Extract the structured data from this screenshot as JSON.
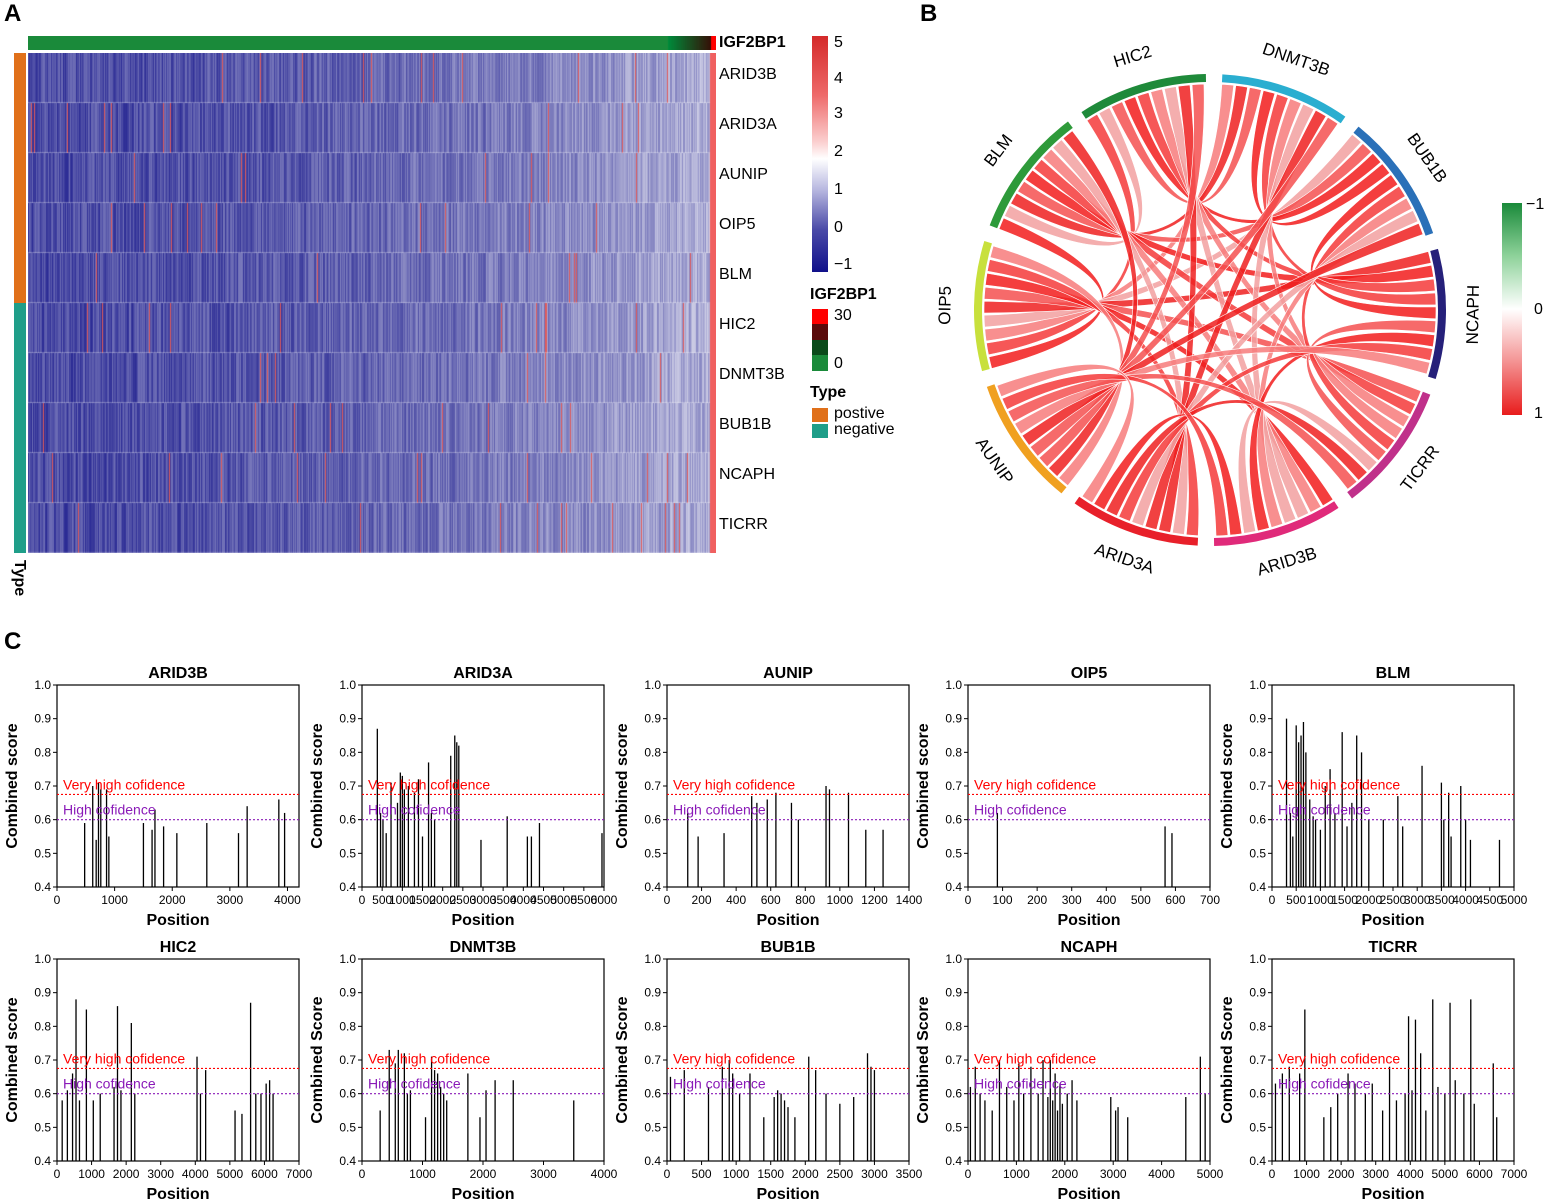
{
  "panels": {
    "a": "A",
    "b": "B",
    "c": "C"
  },
  "heatmap": {
    "top_annotation": "IGF2BP1",
    "genes": [
      "ARID3B",
      "ARID3A",
      "AUNIP",
      "OIP5",
      "BLM",
      "HIC2",
      "DNMT3B",
      "BUB1B",
      "NCAPH",
      "TICRR"
    ],
    "gene_types": [
      "postive",
      "postive",
      "postive",
      "postive",
      "postive",
      "negative",
      "negative",
      "negative",
      "negative",
      "negative"
    ],
    "type_axis_label": "Type",
    "scale_ticks": [
      "5",
      "4",
      "3",
      "2",
      "1",
      "0",
      "−1"
    ],
    "igf_legend_title": "IGF2BP1",
    "igf_legend_ticks": [
      "30",
      "0"
    ],
    "type_legend_title": "Type",
    "type_legend_items": [
      "postive",
      "negative"
    ],
    "colors": {
      "low": "#1a1a8c",
      "mid": "#ffffff",
      "high": "#e03030",
      "green": "#1a8a3a",
      "orange": "#e0701a",
      "teal": "#1f9e89",
      "black": "#000000",
      "red": "#ff0000"
    }
  },
  "chord": {
    "sectors": [
      {
        "name": "OIP5",
        "color": "#c8e03c"
      },
      {
        "name": "BLM",
        "color": "#2e9a3a"
      },
      {
        "name": "HIC2",
        "color": "#1f8a3a"
      },
      {
        "name": "DNMT3B",
        "color": "#2aaed0"
      },
      {
        "name": "BUB1B",
        "color": "#2a70b8"
      },
      {
        "name": "NCAPH",
        "color": "#26207a"
      },
      {
        "name": "TICRR",
        "color": "#c0308a"
      },
      {
        "name": "ARID3B",
        "color": "#e02a7a"
      },
      {
        "name": "ARID3A",
        "color": "#e8202a"
      },
      {
        "name": "AUNIP",
        "color": "#f0a020"
      }
    ],
    "legend_ticks": [
      "−1",
      "0",
      "1"
    ]
  },
  "chart_data": [
    {
      "type": "bar",
      "title": "ARID3B",
      "xlabel": "Position",
      "ylabel": "Combined score",
      "xlim": [
        0,
        4200
      ],
      "ylim": [
        0.4,
        1.0
      ],
      "xticks": [
        "0",
        "1000",
        "2000",
        "3000",
        "4000"
      ],
      "yticks": [
        "0.4",
        "0.5",
        "0.6",
        "0.7",
        "0.8",
        "0.9",
        "1.0"
      ],
      "thresholds": [
        {
          "label": "Very high cofidence",
          "value": 0.675,
          "color": "#ff0000"
        },
        {
          "label": "High cofidence",
          "value": 0.6,
          "color": "#8a1ab8"
        }
      ],
      "x": [
        480,
        620,
        680,
        720,
        760,
        860,
        900,
        1500,
        1650,
        1700,
        1850,
        2080,
        2600,
        3150,
        3300,
        3850,
        3950
      ],
      "values": [
        0.59,
        0.7,
        0.54,
        0.71,
        0.69,
        0.69,
        0.55,
        0.59,
        0.57,
        0.63,
        0.58,
        0.56,
        0.59,
        0.56,
        0.64,
        0.66,
        0.62
      ]
    },
    {
      "type": "bar",
      "title": "ARID3A",
      "xlabel": "Position",
      "ylabel": "Combined score",
      "xlim": [
        0,
        6000
      ],
      "ylim": [
        0.4,
        1.0
      ],
      "xticks": [
        "0",
        "500",
        "1000",
        "1500",
        "2000",
        "2500",
        "3000",
        "3500",
        "4000",
        "4500",
        "5000",
        "5500",
        "6000"
      ],
      "yticks": [
        "0.4",
        "0.5",
        "0.6",
        "0.7",
        "0.8",
        "0.9",
        "1.0"
      ],
      "thresholds": [
        {
          "label": "Very high cofidence",
          "value": 0.675,
          "color": "#ff0000"
        },
        {
          "label": "High cofidence",
          "value": 0.6,
          "color": "#8a1ab8"
        }
      ],
      "x": [
        380,
        460,
        520,
        600,
        720,
        880,
        950,
        1000,
        1050,
        1150,
        1300,
        1400,
        1500,
        1650,
        1720,
        1800,
        2200,
        2300,
        2350,
        2400,
        2950,
        3600,
        4100,
        4200,
        4400,
        5950
      ],
      "values": [
        0.87,
        0.62,
        0.6,
        0.56,
        0.71,
        0.65,
        0.74,
        0.73,
        0.69,
        0.7,
        0.68,
        0.72,
        0.55,
        0.77,
        0.62,
        0.6,
        0.79,
        0.85,
        0.83,
        0.82,
        0.54,
        0.61,
        0.55,
        0.55,
        0.59,
        0.56
      ]
    },
    {
      "type": "bar",
      "title": "AUNIP",
      "xlabel": "Position",
      "ylabel": "Combined score",
      "xlim": [
        0,
        1400
      ],
      "ylim": [
        0.4,
        1.0
      ],
      "xticks": [
        "0",
        "200",
        "400",
        "600",
        "800",
        "1000",
        "1200",
        "1400"
      ],
      "yticks": [
        "0.4",
        "0.5",
        "0.6",
        "0.7",
        "0.8",
        "0.9",
        "1.0"
      ],
      "thresholds": [
        {
          "label": "Very high cofidence",
          "value": 0.675,
          "color": "#ff0000"
        },
        {
          "label": "High cofidence",
          "value": 0.6,
          "color": "#8a1ab8"
        }
      ],
      "x": [
        120,
        180,
        330,
        490,
        520,
        580,
        630,
        720,
        760,
        920,
        940,
        1050,
        1150,
        1250
      ],
      "values": [
        0.62,
        0.55,
        0.56,
        0.67,
        0.65,
        0.66,
        0.68,
        0.65,
        0.6,
        0.7,
        0.69,
        0.68,
        0.57,
        0.57
      ]
    },
    {
      "type": "bar",
      "title": "OIP5",
      "xlabel": "Position",
      "ylabel": "Combined score",
      "xlim": [
        0,
        700
      ],
      "ylim": [
        0.4,
        1.0
      ],
      "xticks": [
        "0",
        "100",
        "200",
        "300",
        "400",
        "500",
        "600",
        "700"
      ],
      "yticks": [
        "0.4",
        "0.5",
        "0.6",
        "0.7",
        "0.8",
        "0.9",
        "1.0"
      ],
      "thresholds": [
        {
          "label": "Very high cofidence",
          "value": 0.675,
          "color": "#ff0000"
        },
        {
          "label": "High cofidence",
          "value": 0.6,
          "color": "#8a1ab8"
        }
      ],
      "x": [
        85,
        570,
        590
      ],
      "values": [
        0.62,
        0.58,
        0.56
      ]
    },
    {
      "type": "bar",
      "title": "BLM",
      "xlabel": "Position",
      "ylabel": "Combined score",
      "xlim": [
        0,
        5000
      ],
      "ylim": [
        0.4,
        1.0
      ],
      "xticks": [
        "0",
        "500",
        "1000",
        "1500",
        "2000",
        "2500",
        "3000",
        "3500",
        "4000",
        "4500",
        "5000"
      ],
      "yticks": [
        "0.4",
        "0.5",
        "0.6",
        "0.7",
        "0.8",
        "0.9",
        "1.0"
      ],
      "thresholds": [
        {
          "label": "Very high cofidence",
          "value": 0.675,
          "color": "#ff0000"
        },
        {
          "label": "High cofidence",
          "value": 0.6,
          "color": "#8a1ab8"
        }
      ],
      "x": [
        300,
        380,
        430,
        500,
        550,
        600,
        650,
        700,
        780,
        850,
        900,
        1000,
        1100,
        1200,
        1300,
        1450,
        1550,
        1650,
        1750,
        1850,
        2000,
        2300,
        2600,
        2700,
        3100,
        3500,
        3550,
        3650,
        3700,
        3900,
        4000,
        4100,
        4700
      ],
      "values": [
        0.9,
        0.62,
        0.55,
        0.88,
        0.83,
        0.85,
        0.89,
        0.8,
        0.66,
        0.61,
        0.6,
        0.57,
        0.7,
        0.75,
        0.62,
        0.86,
        0.58,
        0.65,
        0.85,
        0.8,
        0.6,
        0.6,
        0.67,
        0.58,
        0.76,
        0.71,
        0.6,
        0.68,
        0.55,
        0.7,
        0.6,
        0.54,
        0.54
      ]
    },
    {
      "type": "bar",
      "title": "HIC2",
      "xlabel": "Position",
      "ylabel": "Combined score",
      "xlim": [
        0,
        7000
      ],
      "ylim": [
        0.4,
        1.0
      ],
      "xticks": [
        "0",
        "1000",
        "2000",
        "3000",
        "4000",
        "5000",
        "6000",
        "7000"
      ],
      "yticks": [
        "0.4",
        "0.5",
        "0.6",
        "0.7",
        "0.8",
        "0.9",
        "1.0"
      ],
      "thresholds": [
        {
          "label": "Very high cofidence",
          "value": 0.675,
          "color": "#ff0000"
        },
        {
          "label": "High cofidence",
          "value": 0.6,
          "color": "#8a1ab8"
        }
      ],
      "x": [
        150,
        300,
        450,
        550,
        650,
        850,
        1050,
        1250,
        1650,
        1750,
        1850,
        2150,
        2250,
        4050,
        4150,
        4300,
        5150,
        5350,
        5600,
        5750,
        5900,
        6050,
        6150,
        6250
      ],
      "values": [
        0.58,
        0.61,
        0.66,
        0.88,
        0.58,
        0.85,
        0.58,
        0.6,
        0.62,
        0.86,
        0.61,
        0.81,
        0.6,
        0.71,
        0.6,
        0.67,
        0.55,
        0.54,
        0.87,
        0.6,
        0.6,
        0.63,
        0.64,
        0.6
      ]
    },
    {
      "type": "bar",
      "title": "DNMT3B",
      "xlabel": "Position",
      "ylabel": "Combined Score",
      "xlim": [
        0,
        4000
      ],
      "ylim": [
        0.4,
        1.0
      ],
      "xticks": [
        "0",
        "1000",
        "2000",
        "3000",
        "4000"
      ],
      "yticks": [
        "0.4",
        "0.5",
        "0.6",
        "0.7",
        "0.8",
        "0.9",
        "1.0"
      ],
      "thresholds": [
        {
          "label": "Very high cofidence",
          "value": 0.675,
          "color": "#ff0000"
        },
        {
          "label": "High cofidence",
          "value": 0.6,
          "color": "#8a1ab8"
        }
      ],
      "x": [
        300,
        450,
        550,
        600,
        700,
        750,
        800,
        1050,
        1150,
        1200,
        1250,
        1300,
        1350,
        1400,
        1750,
        1950,
        2050,
        2200,
        2500,
        3500
      ],
      "values": [
        0.55,
        0.73,
        0.69,
        0.73,
        0.72,
        0.6,
        0.61,
        0.53,
        0.71,
        0.67,
        0.66,
        0.62,
        0.6,
        0.58,
        0.66,
        0.53,
        0.61,
        0.64,
        0.64,
        0.58
      ]
    },
    {
      "type": "bar",
      "title": "BUB1B",
      "xlabel": "Position",
      "ylabel": "Combined Score",
      "xlim": [
        0,
        3500
      ],
      "ylim": [
        0.4,
        1.0
      ],
      "xticks": [
        "0",
        "500",
        "1000",
        "1500",
        "2000",
        "2500",
        "3000",
        "3500"
      ],
      "yticks": [
        "0.4",
        "0.5",
        "0.6",
        "0.7",
        "0.8",
        "0.9",
        "1.0"
      ],
      "thresholds": [
        {
          "label": "Very high cofidence",
          "value": 0.675,
          "color": "#ff0000"
        },
        {
          "label": "High cofidence",
          "value": 0.6,
          "color": "#8a1ab8"
        }
      ],
      "x": [
        50,
        250,
        600,
        800,
        900,
        950,
        1050,
        1200,
        1400,
        1550,
        1600,
        1650,
        1700,
        1750,
        1850,
        2050,
        2150,
        2300,
        2500,
        2700,
        2900,
        2950,
        3000
      ],
      "values": [
        0.65,
        0.67,
        0.62,
        0.68,
        0.7,
        0.66,
        0.6,
        0.66,
        0.53,
        0.59,
        0.61,
        0.6,
        0.58,
        0.56,
        0.53,
        0.71,
        0.67,
        0.6,
        0.57,
        0.59,
        0.72,
        0.68,
        0.67
      ]
    },
    {
      "type": "bar",
      "title": "NCAPH",
      "xlabel": "Position",
      "ylabel": "Combined Score",
      "xlim": [
        0,
        5000
      ],
      "ylim": [
        0.4,
        1.0
      ],
      "xticks": [
        "0",
        "1000",
        "2000",
        "3000",
        "4000",
        "5000"
      ],
      "yticks": [
        "0.4",
        "0.5",
        "0.6",
        "0.7",
        "0.8",
        "0.9",
        "1.0"
      ],
      "thresholds": [
        {
          "label": "Very high cofidence",
          "value": 0.675,
          "color": "#ff0000"
        },
        {
          "label": "High cofidence",
          "value": 0.6,
          "color": "#8a1ab8"
        }
      ],
      "x": [
        50,
        150,
        250,
        350,
        500,
        650,
        800,
        950,
        1050,
        1150,
        1300,
        1450,
        1550,
        1650,
        1700,
        1750,
        1800,
        1850,
        1900,
        1950,
        2050,
        2150,
        2250,
        2950,
        3050,
        3100,
        3300,
        4500,
        4800,
        4900
      ],
      "values": [
        0.62,
        0.68,
        0.6,
        0.58,
        0.55,
        0.7,
        0.62,
        0.58,
        0.69,
        0.6,
        0.68,
        0.6,
        0.7,
        0.59,
        0.7,
        0.58,
        0.66,
        0.55,
        0.63,
        0.57,
        0.6,
        0.64,
        0.58,
        0.59,
        0.55,
        0.56,
        0.53,
        0.59,
        0.71,
        0.6
      ]
    },
    {
      "type": "bar",
      "title": "TICRR",
      "xlabel": "Position",
      "ylabel": "Combined Score",
      "xlim": [
        0,
        7000
      ],
      "ylim": [
        0.4,
        1.0
      ],
      "xticks": [
        "0",
        "1000",
        "2000",
        "3000",
        "4000",
        "5000",
        "6000",
        "7000"
      ],
      "yticks": [
        "0.4",
        "0.5",
        "0.6",
        "0.7",
        "0.8",
        "0.9",
        "1.0"
      ],
      "thresholds": [
        {
          "label": "Very high cofidence",
          "value": 0.675,
          "color": "#ff0000"
        },
        {
          "label": "High cofidence",
          "value": 0.6,
          "color": "#8a1ab8"
        }
      ],
      "x": [
        100,
        300,
        500,
        800,
        950,
        1500,
        1700,
        1900,
        2200,
        2400,
        2700,
        2900,
        3200,
        3400,
        3600,
        3850,
        3950,
        4050,
        4150,
        4300,
        4450,
        4650,
        4800,
        5000,
        5150,
        5300,
        5550,
        5750,
        5850,
        6400,
        6500
      ],
      "values": [
        0.63,
        0.66,
        0.68,
        0.66,
        0.85,
        0.53,
        0.56,
        0.6,
        0.66,
        0.63,
        0.6,
        0.63,
        0.55,
        0.68,
        0.58,
        0.6,
        0.83,
        0.61,
        0.82,
        0.72,
        0.55,
        0.88,
        0.62,
        0.6,
        0.87,
        0.64,
        0.6,
        0.88,
        0.57,
        0.69,
        0.53
      ]
    }
  ]
}
